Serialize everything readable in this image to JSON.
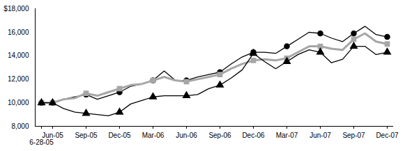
{
  "chart_data": {
    "type": "line",
    "categories": [
      "6-28-05",
      "Jun-05",
      null,
      null,
      "Sep-05",
      null,
      null,
      "Dec-05",
      null,
      null,
      "Mar-06",
      null,
      null,
      "Jun-06",
      null,
      null,
      "Sep-06",
      null,
      null,
      "Dec-06",
      null,
      null,
      "Mar-07",
      null,
      null,
      "Jun-07",
      null,
      null,
      "Sep-07",
      null,
      null,
      "Dec-07"
    ],
    "series": [
      {
        "color": "#000000",
        "marker": "circle",
        "values": [
          10000,
          10000,
          10300,
          10500,
          10700,
          10300,
          10600,
          10900,
          11400,
          11600,
          11900,
          12700,
          11900,
          11900,
          12200,
          12400,
          12600,
          13300,
          13900,
          14300,
          14300,
          14200,
          14800,
          15400,
          16000,
          15900,
          15500,
          15200,
          15900,
          16500,
          15800,
          15600
        ]
      },
      {
        "color": "#a6a6a6",
        "marker": "square",
        "values": [
          10000,
          10000,
          10300,
          10400,
          10800,
          10600,
          10900,
          11200,
          11500,
          11600,
          11900,
          12200,
          11900,
          11800,
          12000,
          12200,
          12400,
          12900,
          13300,
          13600,
          13700,
          13600,
          13800,
          14300,
          14800,
          14800,
          14600,
          14500,
          15400,
          15900,
          15200,
          15000
        ]
      },
      {
        "color": "#000000",
        "marker": "triangle",
        "values": [
          10000,
          10000,
          9500,
          9200,
          9100,
          9000,
          8900,
          9200,
          9900,
          10200,
          10500,
          10600,
          10600,
          10600,
          10700,
          11200,
          11500,
          12100,
          12800,
          14200,
          13500,
          12900,
          13500,
          14100,
          14500,
          14300,
          13400,
          13700,
          14800,
          14800,
          14100,
          14300
        ]
      }
    ],
    "ylim": [
      8000,
      18000
    ],
    "yticks": [
      {
        "value": 8000,
        "label": "8,000"
      },
      {
        "value": 10000,
        "label": "10,000"
      },
      {
        "value": 12000,
        "label": "12,000"
      },
      {
        "value": 14000,
        "label": "14,000"
      },
      {
        "value": 16000,
        "label": "16,000"
      },
      {
        "value": 18000,
        "label": "$18,000"
      }
    ],
    "grid": false
  }
}
